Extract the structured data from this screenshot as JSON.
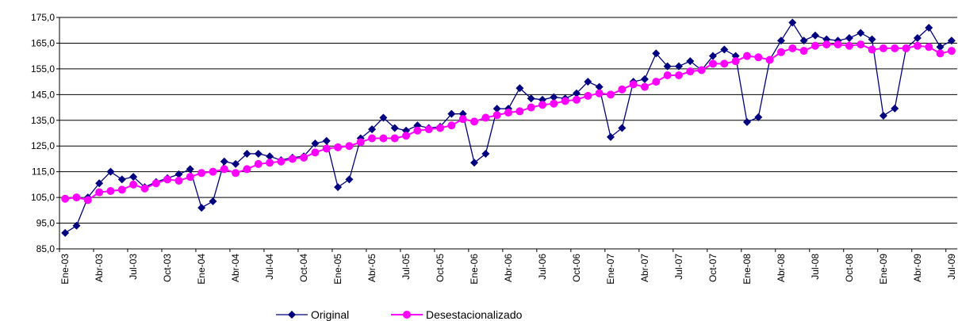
{
  "chart_data": {
    "type": "line",
    "categories": [
      "Ene-03",
      null,
      null,
      "Abr-03",
      null,
      null,
      "Jul-03",
      null,
      null,
      "Oct-03",
      null,
      null,
      "Ene-04",
      null,
      null,
      "Abr-04",
      null,
      null,
      "Jul-04",
      null,
      null,
      "Oct-04",
      null,
      null,
      "Ene-05",
      null,
      null,
      "Abr-05",
      null,
      null,
      "Jul-05",
      null,
      null,
      "Oct-05",
      null,
      null,
      "Ene-06",
      null,
      null,
      "Abr-06",
      null,
      null,
      "Jul-06",
      null,
      null,
      "Oct-06",
      null,
      null,
      "Ene-07",
      null,
      null,
      "Abr-07",
      null,
      null,
      "Jul-07",
      null,
      null,
      "Oct-07",
      null,
      null,
      "Ene-08",
      null,
      null,
      "Abr-08",
      null,
      null,
      "Jul-08",
      null,
      null,
      "Oct-08",
      null,
      null,
      "Ene-09",
      null,
      null,
      "Abr-09",
      null,
      null,
      "Jul-09"
    ],
    "series": [
      {
        "name": "Original",
        "color": "#000080",
        "marker": "diamond",
        "values": [
          91.2,
          94,
          105,
          110.5,
          115,
          112,
          113,
          109,
          111,
          112.5,
          114,
          116,
          101,
          103.5,
          119,
          118,
          122,
          122,
          121,
          119.5,
          120.5,
          121,
          126,
          127,
          109,
          112,
          128,
          131.5,
          136,
          132,
          131,
          133,
          132,
          132.5,
          137.5,
          137.5,
          118.5,
          122,
          139.5,
          139.5,
          147.5,
          143.5,
          143,
          144,
          143.5,
          145.5,
          150,
          148,
          128.5,
          132,
          150,
          151,
          161,
          156,
          156,
          158,
          154.5,
          160,
          162.5,
          160,
          134.3,
          136.2,
          158.5,
          166,
          173,
          166,
          168,
          166.5,
          166,
          167,
          169,
          166.5,
          136.8,
          139.6,
          163,
          167,
          171,
          163.5,
          166
        ]
      },
      {
        "name": "Desestacionalizado",
        "color": "#ff00ff",
        "marker": "circle",
        "values": [
          104.5,
          105,
          104,
          107,
          107.5,
          108,
          110,
          108.5,
          110.5,
          112,
          111.5,
          113,
          114.5,
          115,
          116,
          114.5,
          116,
          118,
          118.5,
          119,
          120,
          120.5,
          122.5,
          124,
          124.5,
          125,
          126.5,
          128,
          128,
          128,
          129,
          131,
          131.5,
          132,
          133,
          135.5,
          134.5,
          136,
          137,
          138,
          138.5,
          140,
          141,
          141.5,
          142.5,
          143,
          144.5,
          145.5,
          145,
          147,
          149,
          148,
          150,
          152.5,
          152.5,
          154,
          154.5,
          157,
          157,
          158,
          160,
          159.5,
          158.5,
          161.5,
          163,
          162,
          164,
          164.5,
          164.5,
          164,
          164.5,
          162.5,
          163,
          163,
          163,
          164,
          163.5,
          161,
          162
        ]
      }
    ],
    "ylim": [
      85,
      175
    ],
    "yticks": [
      {
        "value": 85,
        "label": "85,0"
      },
      {
        "value": 95,
        "label": "95,0"
      },
      {
        "value": 105,
        "label": "105,0"
      },
      {
        "value": 115,
        "label": "115,0"
      },
      {
        "value": 125,
        "label": "125,0"
      },
      {
        "value": 135,
        "label": "135,0"
      },
      {
        "value": 145,
        "label": "145,0"
      },
      {
        "value": 155,
        "label": "155,0"
      },
      {
        "value": 165,
        "label": "165,0"
      },
      {
        "value": 175,
        "label": "175,0"
      }
    ],
    "grid": true,
    "legend": "bottom"
  }
}
